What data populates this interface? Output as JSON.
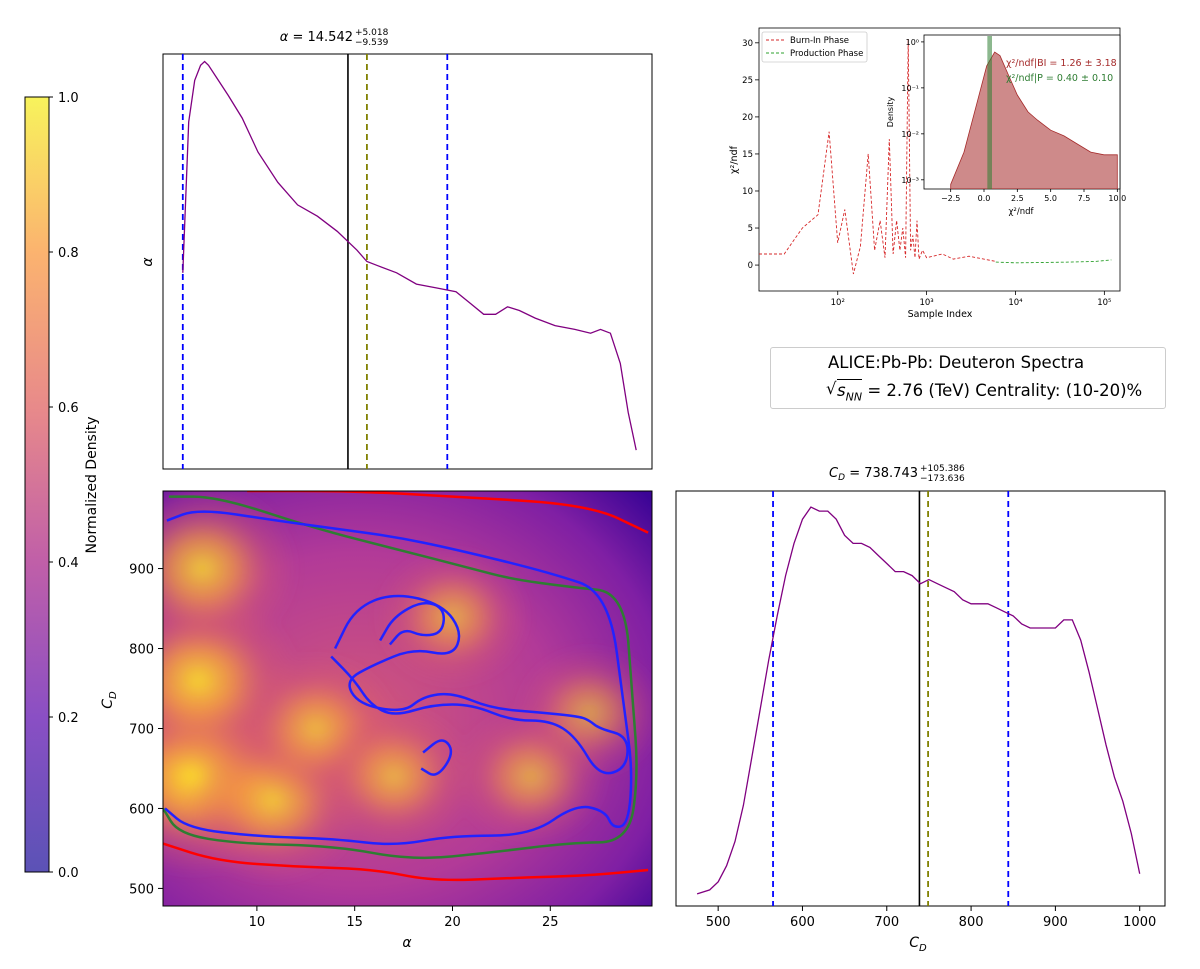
{
  "chart_data": [
    {
      "id": "alpha-marginal",
      "type": "line",
      "title_symbol": "α",
      "title_value": "14.542",
      "title_err_plus": "+5.018",
      "title_err_minus": "−9.539",
      "ylabel": "α",
      "xlim": [
        5.2,
        29.9
      ],
      "line_color": "#800080",
      "x": [
        6.2,
        6.5,
        6.8,
        7.1,
        7.3,
        7.5,
        8.0,
        8.5,
        9.2,
        10.0,
        11.0,
        12.0,
        13.0,
        14.0,
        15.0,
        15.5,
        16.0,
        17.0,
        18.0,
        19.0,
        20.0,
        20.7,
        21.4,
        22.0,
        22.6,
        23.2,
        24.0,
        25.0,
        26.0,
        26.8,
        27.3,
        27.8,
        28.3,
        28.7,
        29.1
      ],
      "y": [
        0.44,
        0.84,
        0.95,
        0.99,
        1.0,
        0.99,
        0.95,
        0.91,
        0.85,
        0.76,
        0.68,
        0.62,
        0.59,
        0.55,
        0.5,
        0.47,
        0.46,
        0.44,
        0.41,
        0.4,
        0.39,
        0.36,
        0.33,
        0.33,
        0.35,
        0.34,
        0.32,
        0.3,
        0.29,
        0.28,
        0.29,
        0.28,
        0.2,
        0.07,
        -0.03
      ],
      "ylim": [
        -0.08,
        1.02
      ],
      "vlines": [
        {
          "value": 6.2,
          "color": "#0000ff",
          "style": "dashed"
        },
        {
          "value": 14.542,
          "color": "#000000",
          "style": "solid"
        },
        {
          "value": 15.5,
          "color": "#808000",
          "style": "dashed"
        },
        {
          "value": 19.56,
          "color": "#0000ff",
          "style": "dashed"
        }
      ]
    },
    {
      "id": "cd-marginal",
      "type": "line",
      "title_symbol": "C",
      "title_subscript": "D",
      "title_value": "738.743",
      "title_err_plus": "+105.386",
      "title_err_minus": "−173.636",
      "xlabel": "C",
      "xlabel_subscript": "D",
      "xlim": [
        450,
        1030
      ],
      "xticks": [
        500,
        600,
        700,
        800,
        900,
        1000
      ],
      "line_color": "#800080",
      "x": [
        475,
        490,
        500,
        510,
        520,
        530,
        540,
        550,
        560,
        570,
        580,
        590,
        600,
        610,
        620,
        630,
        640,
        650,
        660,
        670,
        680,
        690,
        700,
        710,
        720,
        730,
        740,
        750,
        760,
        770,
        780,
        790,
        800,
        810,
        820,
        830,
        840,
        850,
        860,
        870,
        880,
        890,
        900,
        910,
        920,
        930,
        940,
        950,
        960,
        970,
        980,
        990,
        1000
      ],
      "y": [
        0.0,
        0.01,
        0.03,
        0.07,
        0.13,
        0.22,
        0.34,
        0.46,
        0.58,
        0.69,
        0.79,
        0.87,
        0.93,
        0.96,
        0.95,
        0.95,
        0.93,
        0.89,
        0.87,
        0.87,
        0.86,
        0.84,
        0.82,
        0.8,
        0.8,
        0.79,
        0.77,
        0.78,
        0.77,
        0.76,
        0.75,
        0.73,
        0.72,
        0.72,
        0.72,
        0.71,
        0.7,
        0.69,
        0.67,
        0.66,
        0.66,
        0.66,
        0.66,
        0.68,
        0.68,
        0.63,
        0.55,
        0.46,
        0.37,
        0.29,
        0.23,
        0.15,
        0.05
      ],
      "ylim": [
        -0.03,
        1.0
      ],
      "vlines": [
        {
          "value": 565.1,
          "color": "#0000ff",
          "style": "dashed"
        },
        {
          "value": 738.743,
          "color": "#000000",
          "style": "solid"
        },
        {
          "value": 749,
          "color": "#808000",
          "style": "dashed"
        },
        {
          "value": 844.1,
          "color": "#0000ff",
          "style": "dashed"
        }
      ]
    },
    {
      "id": "joint-density",
      "type": "heatmap",
      "xlabel": "α",
      "ylabel": "C",
      "ylabel_subscript": "D",
      "xlim": [
        5.2,
        30.2
      ],
      "ylim": [
        478,
        997
      ],
      "xticks": [
        10,
        15,
        20,
        25
      ],
      "yticks": [
        500,
        600,
        700,
        800,
        900
      ],
      "colorbar_label": "Normalized Density",
      "colorbar_ticks": [
        "0.0",
        "0.2",
        "0.4",
        "0.6",
        "0.8",
        "1.0"
      ],
      "colormap": [
        "#0d0887",
        "#5c01a6",
        "#9c179e",
        "#cc4778",
        "#ed7953",
        "#fdb42f",
        "#f0f921"
      ],
      "hotspots": [
        {
          "x": 6.8,
          "y": 640,
          "weight": 1.0
        },
        {
          "x": 7.0,
          "y": 760,
          "weight": 0.85
        },
        {
          "x": 7.2,
          "y": 900,
          "weight": 0.75
        },
        {
          "x": 10.8,
          "y": 610,
          "weight": 0.7
        },
        {
          "x": 13.0,
          "y": 700,
          "weight": 0.55
        },
        {
          "x": 17.0,
          "y": 640,
          "weight": 0.5
        },
        {
          "x": 20.0,
          "y": 840,
          "weight": 0.45
        },
        {
          "x": 24.0,
          "y": 640,
          "weight": 0.45
        },
        {
          "x": 27.0,
          "y": 720,
          "weight": 0.4
        }
      ],
      "contours": [
        {
          "color": "#ff0000",
          "points": [
            [
              5.2,
              556
            ],
            [
              8,
              534
            ],
            [
              12,
              527
            ],
            [
              16,
              524
            ],
            [
              19,
              509
            ],
            [
              23,
              513
            ],
            [
              27,
              516
            ],
            [
              30,
              523
            ]
          ]
        },
        {
          "color": "#ff0000",
          "points": [
            [
              9.5,
              997
            ],
            [
              15,
              997
            ],
            [
              20,
              990
            ],
            [
              27,
              980
            ],
            [
              30,
              945
            ]
          ]
        },
        {
          "color": "#2e7d32",
          "points": [
            [
              5.2,
              600
            ],
            [
              6,
              568
            ],
            [
              9,
              556
            ],
            [
              14,
              553
            ],
            [
              18,
              535
            ],
            [
              22,
              545
            ],
            [
              26,
              557
            ],
            [
              29,
              558
            ],
            [
              29.5,
              640
            ],
            [
              29.2,
              740
            ],
            [
              28.8,
              870
            ],
            [
              26,
              877
            ],
            [
              23,
              887
            ],
            [
              21,
              900
            ],
            [
              17,
              925
            ],
            [
              13,
              950
            ],
            [
              8,
              990
            ],
            [
              5.5,
              990
            ]
          ]
        },
        {
          "color": "#2222ff",
          "points": [
            [
              5.3,
              600
            ],
            [
              6.5,
              575
            ],
            [
              10,
              565
            ],
            [
              14,
              562
            ],
            [
              17,
              553
            ],
            [
              20,
              566
            ],
            [
              24,
              566
            ],
            [
              26.3,
              605
            ],
            [
              27.8,
              597
            ],
            [
              28.2,
              575
            ],
            [
              29.0,
              580
            ],
            [
              29.2,
              650
            ],
            [
              28.8,
              720
            ],
            [
              28.0,
              870
            ],
            [
              25,
              895
            ],
            [
              20,
              925
            ],
            [
              17,
              940
            ],
            [
              14,
              950
            ],
            [
              11,
              960
            ],
            [
              7,
              975
            ],
            [
              5.4,
              960
            ]
          ]
        },
        {
          "color": "#2222ff",
          "points": [
            [
              14.0,
              800
            ],
            [
              15.0,
              850
            ],
            [
              17.0,
              870
            ],
            [
              19.5,
              855
            ],
            [
              20.5,
              820
            ],
            [
              20.0,
              790
            ],
            [
              18.0,
              800
            ],
            [
              16.0,
              780
            ],
            [
              14.5,
              760
            ],
            [
              15.2,
              730
            ],
            [
              17.5,
              720
            ],
            [
              18.5,
              740
            ],
            [
              20.0,
              745
            ],
            [
              22.0,
              725
            ],
            [
              24.5,
              720
            ],
            [
              26.5,
              715
            ],
            [
              27.0,
              710
            ],
            [
              27.5,
              700
            ],
            [
              29.0,
              690
            ],
            [
              28.9,
              650
            ],
            [
              27.5,
              640
            ],
            [
              26.3,
              690
            ],
            [
              25.0,
              710
            ],
            [
              23.0,
              710
            ],
            [
              21.0,
              730
            ],
            [
              19.0,
              730
            ],
            [
              17.0,
              715
            ],
            [
              15.8,
              730
            ],
            [
              15.0,
              760
            ],
            [
              13.8,
              790
            ]
          ]
        },
        {
          "color": "#2222ff",
          "points": [
            [
              18.5,
              670
            ],
            [
              19.5,
              690
            ],
            [
              20.1,
              670
            ],
            [
              19.2,
              638
            ],
            [
              18.4,
              650
            ]
          ]
        },
        {
          "color": "#2222ff",
          "points": [
            [
              16.3,
              810
            ],
            [
              17.0,
              840
            ],
            [
              18.5,
              860
            ],
            [
              19.6,
              850
            ],
            [
              19.5,
              820
            ],
            [
              18.5,
              815
            ],
            [
              17.5,
              825
            ],
            [
              16.8,
              805
            ]
          ]
        }
      ]
    },
    {
      "id": "chi2-trace",
      "type": "line",
      "xlabel": "Sample Index",
      "ylabel": "χ²/ndf",
      "xscale": "log",
      "xlim": [
        13,
        150000
      ],
      "ylim": [
        -3.5,
        32
      ],
      "xticks": [
        "10²",
        "10³",
        "10⁴",
        "10⁵"
      ],
      "yticks": [
        0,
        5,
        10,
        15,
        20,
        25,
        30
      ],
      "legend": [
        {
          "label": "Burn-In Phase",
          "color": "#d62728",
          "style": "dashed"
        },
        {
          "label": "Production Phase",
          "color": "#2ca02c",
          "style": "dashed"
        }
      ],
      "series": [
        {
          "name": "Burn-In Phase",
          "color": "#d62728",
          "x": [
            13,
            25,
            40,
            60,
            80,
            100,
            120,
            150,
            180,
            220,
            260,
            300,
            340,
            380,
            420,
            460,
            500,
            540,
            580,
            620,
            660,
            700,
            740,
            780,
            820,
            900,
            1000,
            1500,
            2000,
            3000,
            4000,
            6000
          ],
          "y": [
            1.5,
            1.5,
            5.0,
            6.8,
            18.0,
            3.0,
            7.5,
            -1.2,
            2.5,
            15.0,
            2.0,
            6.0,
            1.0,
            17.0,
            1.5,
            6.0,
            2.0,
            5.0,
            1.0,
            30.5,
            2.0,
            4.0,
            1.0,
            6.0,
            0.8,
            2.0,
            1.0,
            1.5,
            0.8,
            1.2,
            0.9,
            0.5
          ]
        },
        {
          "name": "Production Phase",
          "color": "#2ca02c",
          "x": [
            6000,
            10000,
            20000,
            40000,
            80000,
            120000
          ],
          "y": [
            0.4,
            0.3,
            0.35,
            0.4,
            0.5,
            0.7
          ]
        }
      ],
      "inset": {
        "xlabel": "χ²/ndf",
        "ylabel": "Density",
        "yscale": "log",
        "xlim": [
          -4.5,
          10.2
        ],
        "xticks": [
          "−2.5",
          "0.0",
          "2.5",
          "5.0",
          "7.5",
          "10.0"
        ],
        "yticks": [
          "10⁻³",
          "10⁻²",
          "10⁻¹",
          "10⁰"
        ],
        "annotation_bi": "χ²/ndf|BI = 1.26 ± 3.18",
        "annotation_p": "χ²/ndf|P = 0.40 ± 0.10",
        "bi_color": "#a52a2a",
        "p_color": "#2e7d32",
        "bi_density_x": [
          -2.5,
          -1.5,
          -0.5,
          0.2,
          0.8,
          1.2,
          1.8,
          2.5,
          3.3,
          4.0,
          5.0,
          6.0,
          7.0,
          8.0,
          9.0,
          10.0
        ],
        "bi_density_y": [
          0.0008,
          0.004,
          0.05,
          0.3,
          0.6,
          0.5,
          0.2,
          0.07,
          0.03,
          0.02,
          0.012,
          0.009,
          0.006,
          0.004,
          0.0035,
          0.0035
        ]
      }
    }
  ],
  "info_box": {
    "line1": "ALICE:Pb-Pb: Deuteron Spectra",
    "sqrt_symbol": "s",
    "sqrt_sub": "NN",
    "line2": "= 2.76 (TeV) Centrality: (10-20)%"
  }
}
